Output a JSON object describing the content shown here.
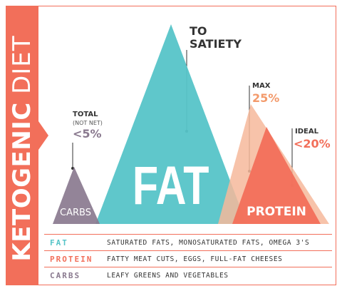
{
  "banner": {
    "title_bold": "KETOGENIC",
    "title_light": "DIET"
  },
  "colors": {
    "fat": "#56c4c8",
    "protein": "#f26f5a",
    "protein_outer": "#f6b89b",
    "carbs": "#8a7a8f",
    "accent": "#f26f5a"
  },
  "triangles": {
    "fat": {
      "label": "FAT"
    },
    "protein": {
      "label": "PROTEIN"
    },
    "carbs": {
      "label": "CARBS"
    }
  },
  "callouts": {
    "fat": {
      "line1": "TO",
      "line2": "SATIETY"
    },
    "carbs": {
      "label": "TOTAL",
      "sub": "(NOT NET)",
      "value": "<5%"
    },
    "protein_max": {
      "label": "MAX",
      "value": "25%"
    },
    "protein_ideal": {
      "label": "IDEAL",
      "value": "<20%"
    }
  },
  "legend": [
    {
      "key": "FAT",
      "color": "#56c4c8",
      "value": "SATURATED FATS, MONOSATURATED FATS, OMEGA 3'S"
    },
    {
      "key": "PROTEIN",
      "color": "#f26f5a",
      "value": "FATTY MEAT CUTS, EGGS, FULL-FAT CHEESES"
    },
    {
      "key": "CARBS",
      "color": "#8a7a8f",
      "value": "LEAFY GREENS AND VEGETABLES"
    }
  ]
}
